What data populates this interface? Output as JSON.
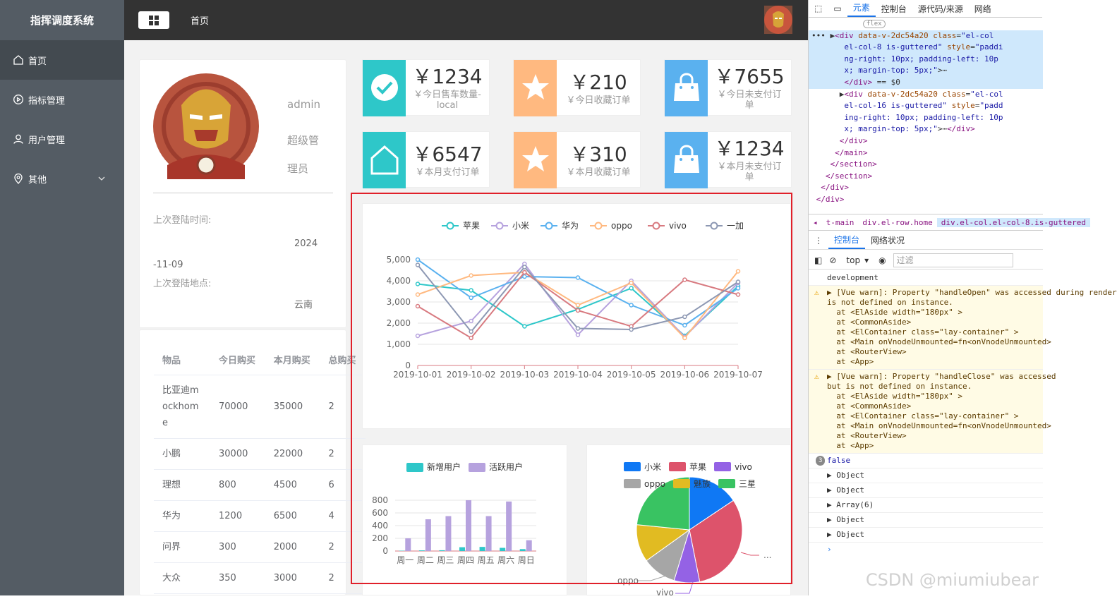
{
  "app": {
    "title": "指挥调度系统",
    "breadcrumb": "首页"
  },
  "sidebar": {
    "items": [
      {
        "label": "首页",
        "icon": "home-icon"
      },
      {
        "label": "指标管理",
        "icon": "video-play-icon"
      },
      {
        "label": "用户管理",
        "icon": "user-icon"
      },
      {
        "label": "其他",
        "icon": "location-icon"
      }
    ]
  },
  "user": {
    "name": "admin",
    "role": "超级管理员",
    "last_login_time_label": "上次登陆时间:",
    "last_login_time": "2024-11-09",
    "last_login_place_label": "上次登陆地点:",
    "last_login_place": "云南"
  },
  "table": {
    "headers": [
      "物品",
      "今日购买",
      "本月购买",
      "总购买"
    ],
    "rows": [
      [
        "比亚迪mockhome",
        "70000",
        "35000",
        "2"
      ],
      [
        "小鹏",
        "30000",
        "22000",
        "2"
      ],
      [
        "理想",
        "800",
        "4500",
        "6"
      ],
      [
        "华为",
        "1200",
        "6500",
        "4"
      ],
      [
        "问界",
        "300",
        "2000",
        "2"
      ],
      [
        "大众",
        "350",
        "3000",
        "2"
      ]
    ]
  },
  "stats": [
    {
      "value": "￥1234",
      "label": "￥今日售车数量-local",
      "color": "#2ec7c9",
      "icon": "check-circle-icon"
    },
    {
      "value": "￥210",
      "label": "￥今日收藏订单",
      "color": "#ffb980",
      "icon": "star-icon"
    },
    {
      "value": "￥7655",
      "label": "￥今日未支付订单",
      "color": "#5ab1ef",
      "icon": "shopping-bag-icon"
    },
    {
      "value": "￥6547",
      "label": "￥本月支付订单",
      "color": "#2ec7c9",
      "icon": "home-icon"
    },
    {
      "value": "￥310",
      "label": "￥本月收藏订单",
      "color": "#ffb980",
      "icon": "star-icon"
    },
    {
      "value": "￥1234",
      "label": "￥本月未支付订单",
      "color": "#5ab1ef",
      "icon": "shopping-bag-icon"
    }
  ],
  "chart_data": [
    {
      "type": "line",
      "x": [
        "2019-10-01",
        "2019-10-02",
        "2019-10-03",
        "2019-10-04",
        "2019-10-05",
        "2019-10-06",
        "2019-10-07"
      ],
      "ylim": [
        0,
        5000
      ],
      "yticks": [
        "0",
        "1,000",
        "2,000",
        "3,000",
        "4,000",
        "5,000"
      ],
      "legend": "top",
      "series": [
        {
          "name": "苹果",
          "color": "#2ec7c9",
          "values": [
            3850,
            3550,
            1850,
            2650,
            3650,
            1400,
            3750
          ]
        },
        {
          "name": "小米",
          "color": "#b6a2de",
          "values": [
            1400,
            2100,
            4800,
            1450,
            4000,
            1350,
            3900
          ]
        },
        {
          "name": "华为",
          "color": "#5ab1ef",
          "values": [
            5000,
            3200,
            4200,
            4150,
            2850,
            1900,
            3650
          ]
        },
        {
          "name": "oppo",
          "color": "#ffb980",
          "values": [
            3350,
            4250,
            4400,
            2850,
            3900,
            1300,
            4450
          ]
        },
        {
          "name": "vivo",
          "color": "#d87a80",
          "values": [
            2800,
            1300,
            4400,
            2600,
            1850,
            4050,
            3350
          ]
        },
        {
          "name": "一加",
          "color": "#8d98b3",
          "values": [
            4750,
            1600,
            4650,
            1750,
            1700,
            2300,
            3950
          ]
        }
      ]
    },
    {
      "type": "bar",
      "categories": [
        "周一",
        "周二",
        "周三",
        "周四",
        "周五",
        "周六",
        "周日"
      ],
      "yticks": [
        "0",
        "200",
        "400",
        "600",
        "800"
      ],
      "ylim": [
        0,
        800
      ],
      "legend": "top",
      "series": [
        {
          "name": "新增用户",
          "color": "#2ec7c9",
          "values": [
            5,
            10,
            12,
            60,
            65,
            50,
            30
          ]
        },
        {
          "name": "活跃用户",
          "color": "#b6a2de",
          "values": [
            200,
            500,
            550,
            800,
            550,
            780,
            170
          ]
        }
      ]
    },
    {
      "type": "pie",
      "legend": "top",
      "slices": [
        {
          "name": "小米",
          "color": "#0f78f4",
          "value": 2999
        },
        {
          "name": "苹果",
          "color": "#dd536b",
          "value": 5999
        },
        {
          "name": "vivo",
          "color": "#9462e5",
          "value": 1500
        },
        {
          "name": "oppo",
          "color": "#a6a6a6",
          "value": 1999
        },
        {
          "name": "魅族",
          "color": "#e1bb22",
          "value": 2200
        },
        {
          "name": "三星",
          "color": "#39c362",
          "value": 4500
        }
      ],
      "outside_labels": [
        "oppo",
        "vivo",
        "..."
      ]
    }
  ],
  "devtools": {
    "tabs": [
      "元素",
      "控制台",
      "源代码/来源",
      "网络"
    ],
    "crumbs": [
      "t-main",
      "div.el-row.home",
      "div.el-col.el-col-8.is-guttered"
    ],
    "console_tabs": [
      "控制台",
      "网络状况"
    ],
    "context": "top",
    "filter_placeholder": "过滤",
    "console": {
      "env": "development",
      "warn1": "▶ [Vue warn]: Property \"handleOpen\" was accessed during render\nis not defined on instance.\n  at <ElAside width=\"180px\" >\n  at <CommonAside>\n  at <ElContainer class=\"lay-container\" >\n  at <Main onVnodeUnmounted=fn<onVnodeUnmounted>\n  at <RouterView>\n  at <App>",
      "warn2": "▶ [Vue warn]: Property \"handleClose\" was accessed\nbut is not defined on instance.\n  at <ElAside width=\"180px\" >\n  at <CommonAside>\n  at <ElContainer class=\"lay-container\" >\n  at <Main onVnodeUnmounted=fn<onVnodeUnmounted>\n  at <RouterView>\n  at <App>",
      "false_count": "3",
      "false_text": "false",
      "objects": [
        "▶ Object",
        "▶ Object",
        "▶ Array(6)",
        "▶ Object",
        "▶ Object"
      ]
    }
  },
  "watermark": "CSDN @miumiubear"
}
